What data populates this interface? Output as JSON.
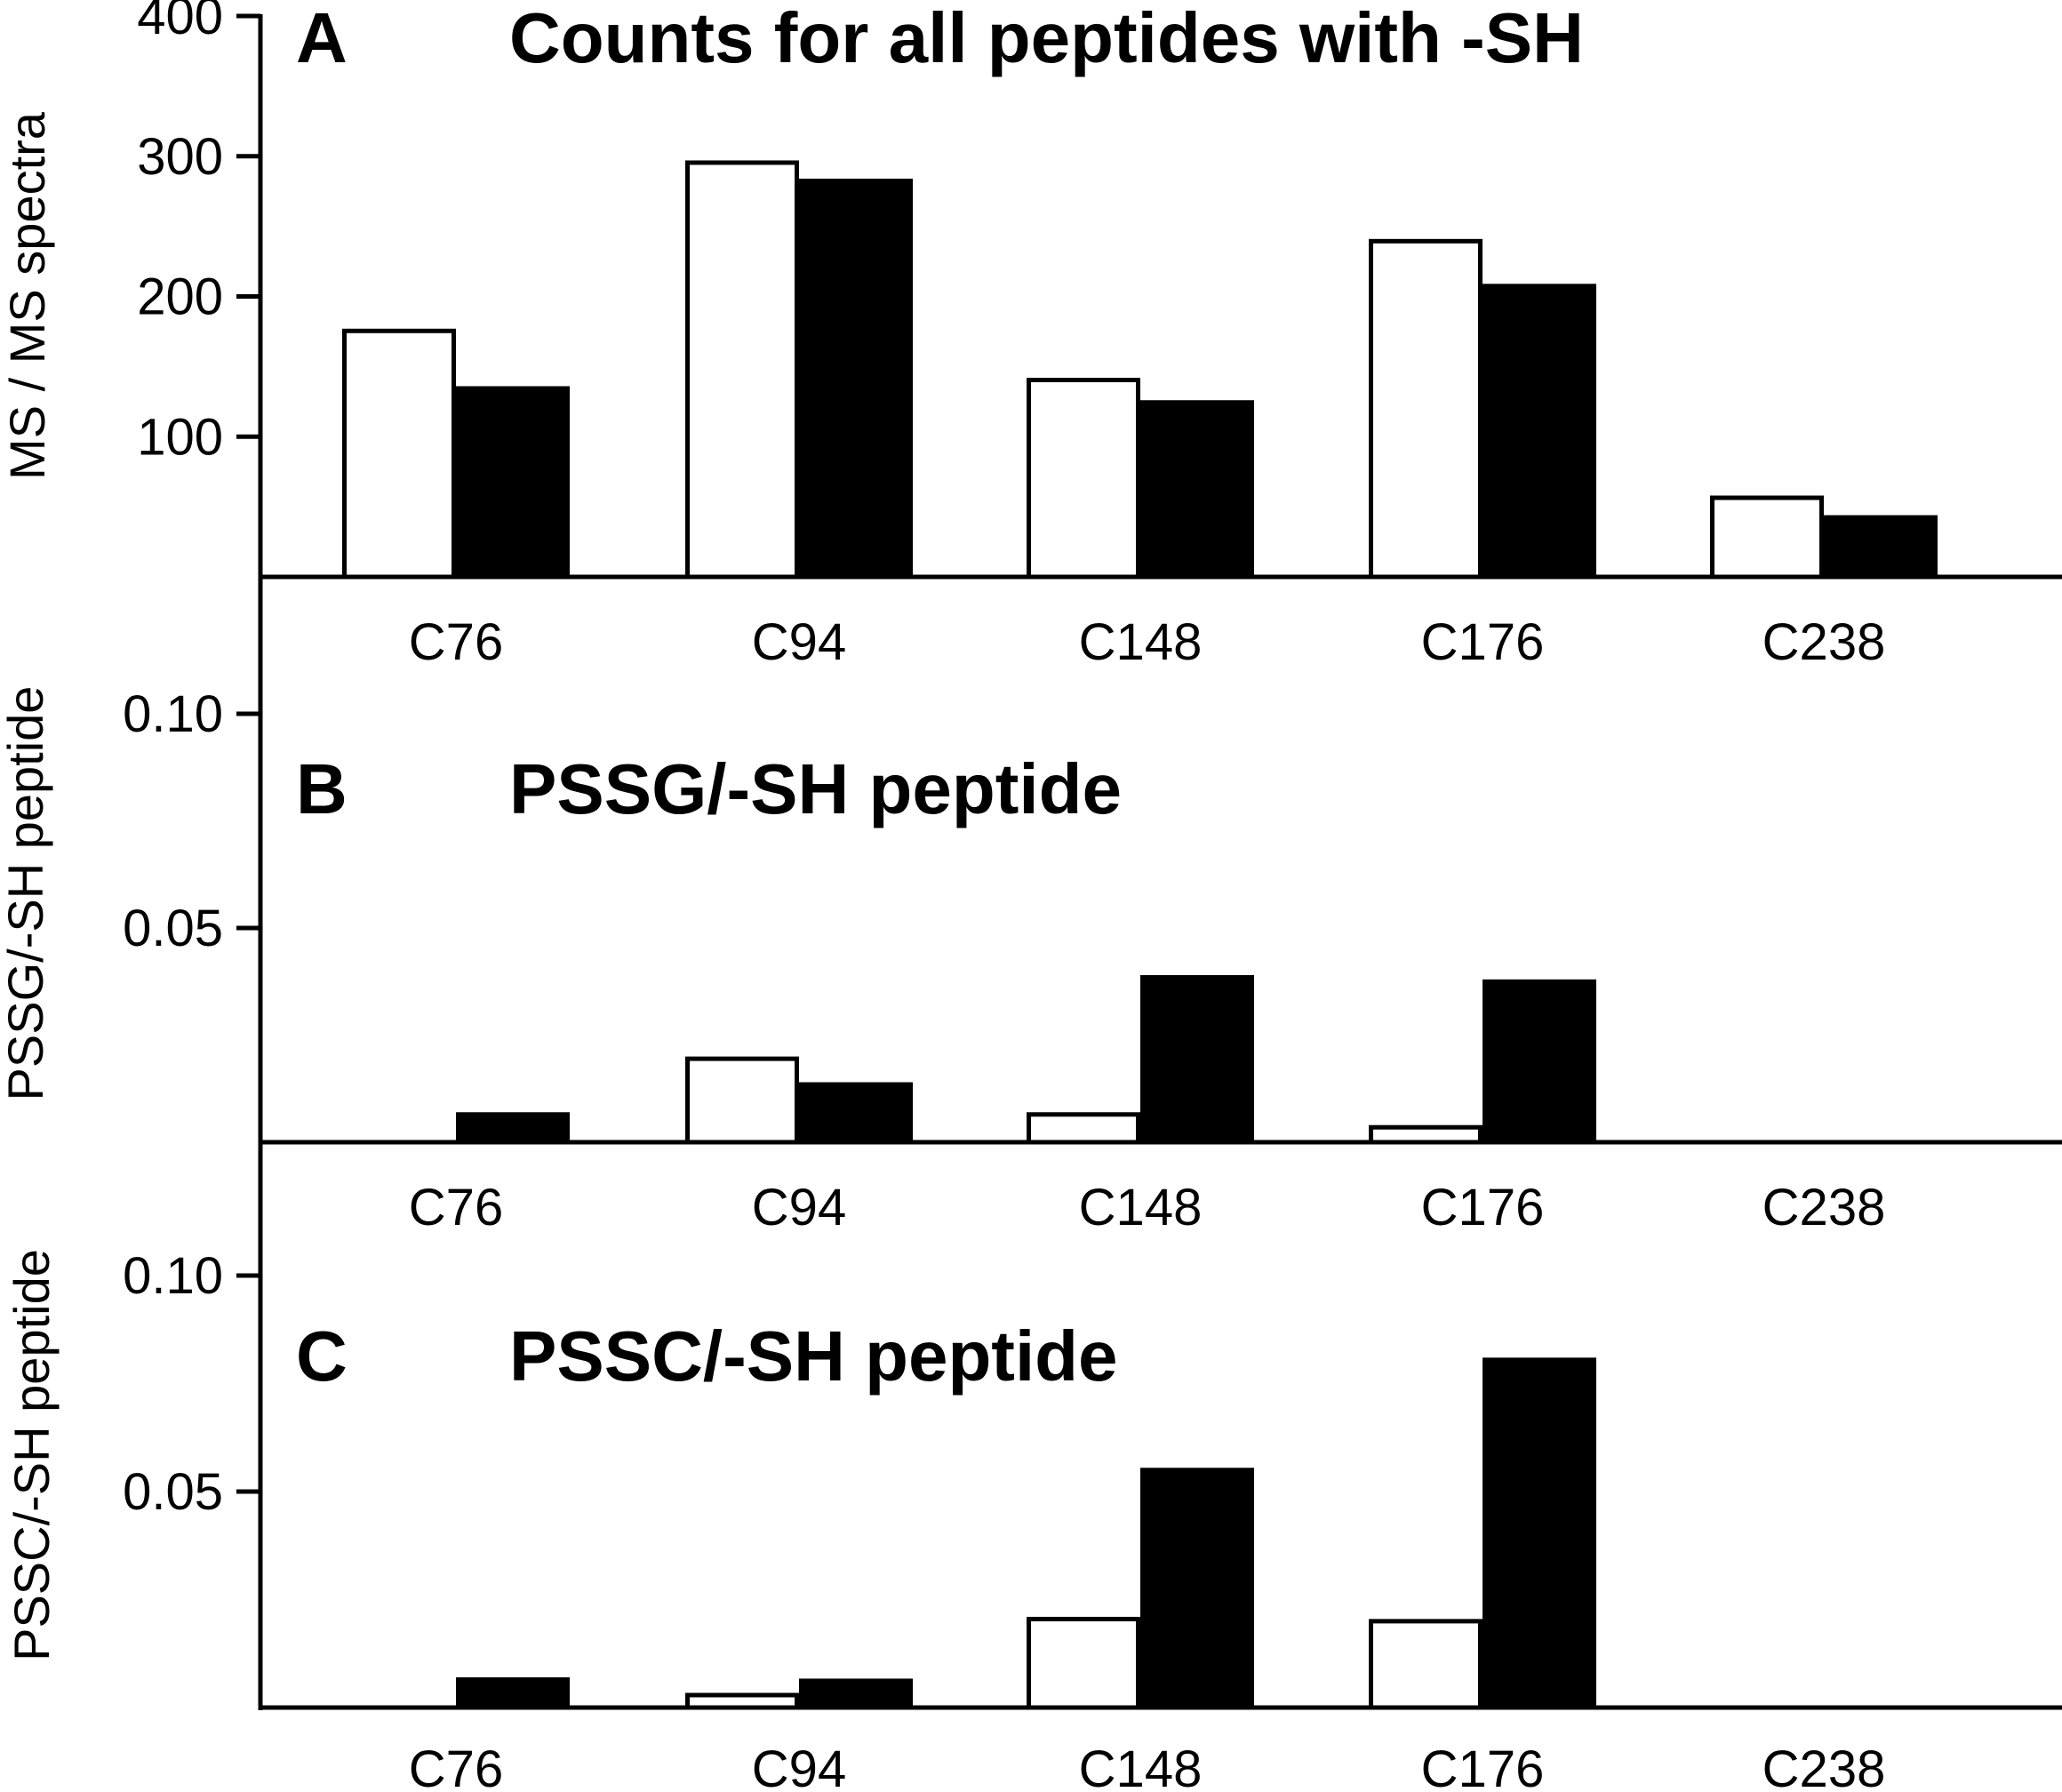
{
  "figure": {
    "panels": [
      {
        "letter": "A",
        "title": "Counts for all peptides with -SH",
        "ylabel": "MS / MS spectra"
      },
      {
        "letter": "B",
        "title": "PSSG/-SH peptide",
        "ylabel": "PSSG/-SH peptide"
      },
      {
        "letter": "C",
        "title": "PSSC/-SH peptide",
        "ylabel": "PSSC/-SH peptide"
      }
    ]
  },
  "chart_data": [
    {
      "type": "bar",
      "panel": "A",
      "title": "Counts for all peptides with -SH",
      "xlabel": "",
      "ylabel": "MS / MS spectra",
      "categories": [
        "C76",
        "C94",
        "C148",
        "C176",
        "C238"
      ],
      "series": [
        {
          "name": "open bars",
          "fill": "#ffffff",
          "values": [
            177,
            297,
            142,
            241,
            58
          ]
        },
        {
          "name": "filled bars",
          "fill": "#000000",
          "values": [
            136,
            284,
            126,
            209,
            44
          ]
        }
      ],
      "ylim": [
        0,
        400
      ],
      "yticks": [
        100,
        200,
        300,
        400
      ],
      "ytick_labels": [
        "100",
        "200",
        "300",
        "400"
      ],
      "grid": false,
      "legend": "none"
    },
    {
      "type": "bar",
      "panel": "B",
      "title": "PSSG/-SH peptide",
      "xlabel": "",
      "ylabel": "PSSG/-SH peptide",
      "categories": [
        "C76",
        "C94",
        "C148",
        "C176",
        "C238"
      ],
      "series": [
        {
          "name": "open bars",
          "fill": "#ffffff",
          "values": [
            0,
            0.02,
            0.007,
            0.004,
            0
          ]
        },
        {
          "name": "filled bars",
          "fill": "#000000",
          "values": [
            0.007,
            0.014,
            0.039,
            0.038,
            0
          ]
        }
      ],
      "ylim": [
        0,
        0.13
      ],
      "yticks": [
        0.05,
        0.1
      ],
      "ytick_labels": [
        "0.05",
        "0.10"
      ],
      "grid": false,
      "legend": "none"
    },
    {
      "type": "bar",
      "panel": "C",
      "title": "PSSC/-SH peptide",
      "xlabel": "",
      "ylabel": "PSSC/-SH peptide",
      "categories": [
        "C76",
        "C94",
        "C148",
        "C176",
        "C238"
      ],
      "series": [
        {
          "name": "open bars",
          "fill": "#ffffff",
          "values": [
            0,
            0.0034,
            0.021,
            0.0205,
            0
          ]
        },
        {
          "name": "filled bars",
          "fill": "#000000",
          "values": [
            0.007,
            0.0067,
            0.0555,
            0.081,
            0
          ]
        }
      ],
      "ylim": [
        0,
        0.13
      ],
      "yticks": [
        0.05,
        0.1
      ],
      "ytick_labels": [
        "0.05",
        "0.10"
      ],
      "grid": false,
      "legend": "none"
    }
  ]
}
